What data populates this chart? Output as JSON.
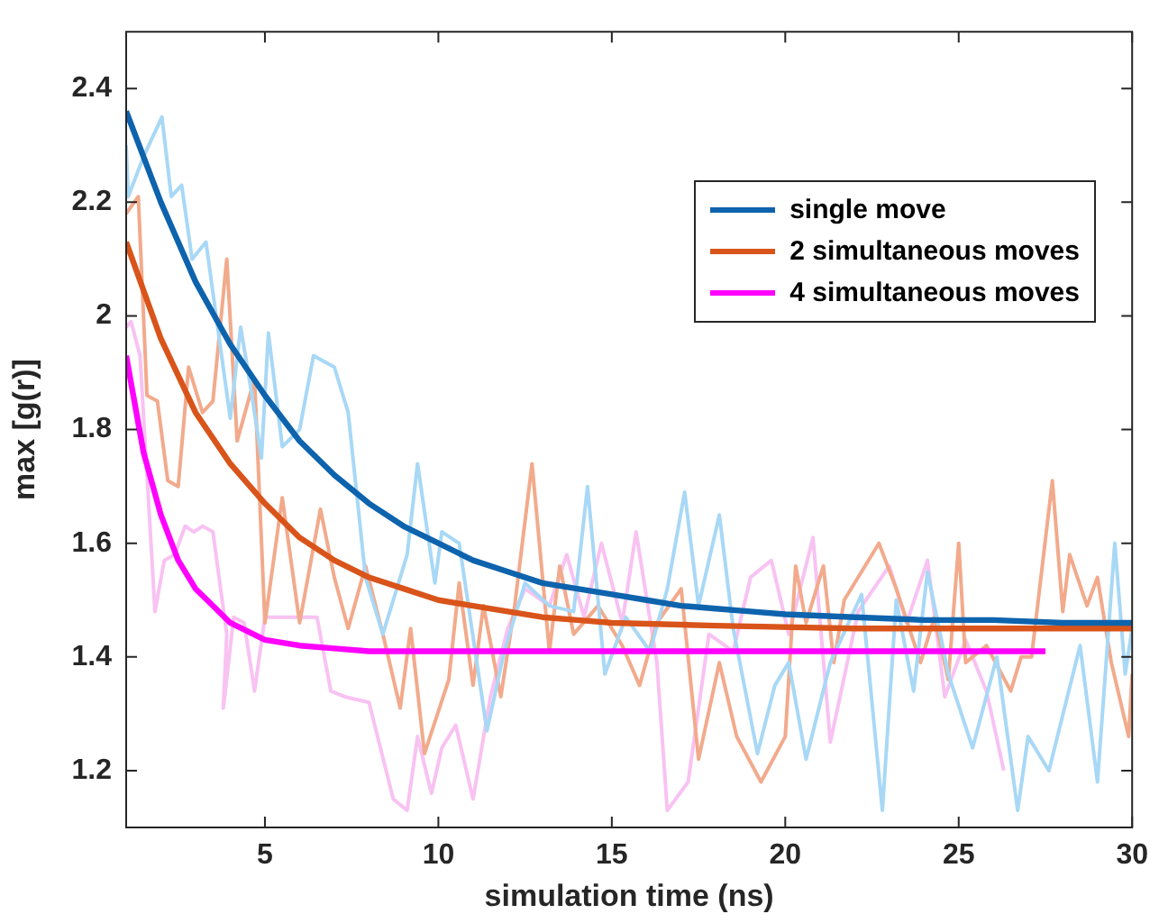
{
  "chart_data": {
    "type": "line",
    "xlabel": "simulation time (ns)",
    "ylabel": "max [g(r)]",
    "xlim": [
      1,
      30
    ],
    "ylim": [
      1.1,
      2.5
    ],
    "xticks": [
      5,
      10,
      15,
      20,
      25,
      30
    ],
    "yticks": [
      1.2,
      1.4,
      1.6,
      1.8,
      2,
      2.2,
      2.4
    ],
    "grid": false,
    "legend": "top right",
    "marker": "none",
    "line_style": "solid",
    "series": [
      {
        "type": "line",
        "color": "#a8d8f6",
        "x": [
          1,
          1.06,
          1.5,
          2.03,
          2.3,
          2.6,
          2.9,
          3.3,
          4.0,
          4.3,
          4.6,
          4.9,
          5.1,
          5.5,
          6.0,
          6.4,
          7.0,
          7.4,
          7.9,
          8.4,
          9.1,
          9.4,
          9.9,
          10.1,
          10.6,
          11.4,
          11.9,
          12.5,
          13.2,
          13.9,
          14.3,
          14.8,
          15.4,
          16.1,
          16.6,
          17.1,
          17.5,
          18.1,
          18.5,
          19.2,
          19.7,
          20.1,
          20.6,
          21.3,
          22.2,
          22.8,
          23.2,
          23.7,
          24.1,
          24.7,
          25.4,
          26.1,
          26.7,
          27.0,
          27.6,
          28.5,
          29.0,
          29.5,
          29.8,
          30
        ],
        "values": [
          2.3,
          2.21,
          2.28,
          2.35,
          2.21,
          2.23,
          2.1,
          2.13,
          1.82,
          1.98,
          1.87,
          1.75,
          1.97,
          1.77,
          1.8,
          1.93,
          1.91,
          1.83,
          1.54,
          1.44,
          1.58,
          1.74,
          1.53,
          1.62,
          1.6,
          1.27,
          1.41,
          1.53,
          1.49,
          1.48,
          1.7,
          1.37,
          1.47,
          1.41,
          1.52,
          1.69,
          1.49,
          1.65,
          1.45,
          1.23,
          1.35,
          1.39,
          1.22,
          1.39,
          1.51,
          1.13,
          1.5,
          1.34,
          1.55,
          1.37,
          1.24,
          1.4,
          1.13,
          1.26,
          1.2,
          1.42,
          1.18,
          1.6,
          1.37,
          1.45
        ]
      },
      {
        "type": "line",
        "color": "#f2aa8c",
        "x": [
          1,
          1.35,
          1.6,
          1.9,
          2.2,
          2.5,
          2.8,
          3.2,
          3.5,
          3.9,
          4.2,
          4.7,
          5.0,
          5.5,
          6.0,
          6.6,
          7.0,
          7.4,
          7.9,
          8.4,
          8.9,
          9.2,
          9.6,
          10.3,
          10.6,
          11.0,
          11.3,
          11.8,
          12.2,
          12.7,
          13.2,
          13.5,
          13.9,
          14.6,
          15.3,
          15.8,
          16.3,
          17.0,
          17.5,
          18.1,
          18.6,
          19.3,
          20.0,
          20.3,
          20.6,
          21.1,
          21.4,
          21.7,
          22.7,
          23.2,
          23.9,
          24.3,
          24.7,
          25.0,
          25.2,
          25.8,
          26.5,
          26.8,
          27.1,
          27.7,
          28.0,
          28.2,
          28.7,
          29.0,
          29.4,
          29.9,
          30
        ],
        "values": [
          2.18,
          2.21,
          1.86,
          1.85,
          1.71,
          1.7,
          1.91,
          1.83,
          1.85,
          2.1,
          1.78,
          1.89,
          1.46,
          1.68,
          1.46,
          1.66,
          1.54,
          1.45,
          1.56,
          1.44,
          1.31,
          1.45,
          1.23,
          1.36,
          1.53,
          1.35,
          1.49,
          1.33,
          1.49,
          1.74,
          1.41,
          1.56,
          1.44,
          1.49,
          1.42,
          1.35,
          1.46,
          1.52,
          1.22,
          1.39,
          1.26,
          1.18,
          1.26,
          1.56,
          1.46,
          1.56,
          1.39,
          1.5,
          1.6,
          1.52,
          1.39,
          1.47,
          1.36,
          1.6,
          1.39,
          1.42,
          1.34,
          1.4,
          1.4,
          1.71,
          1.48,
          1.58,
          1.49,
          1.54,
          1.39,
          1.26,
          1.37
        ]
      },
      {
        "type": "line",
        "color": "#f8c2f2",
        "x": [
          1,
          1.14,
          1.4,
          1.83,
          2.1,
          2.4,
          2.7,
          2.95,
          3.2,
          3.5,
          3.9,
          3.8,
          4.1,
          4.4,
          4.7,
          5.0,
          5.5,
          6.0,
          6.5,
          6.9,
          7.3,
          8.0,
          8.7,
          9.1,
          9.4,
          9.8,
          10.1,
          10.5,
          11.0,
          11.5,
          12.0,
          12.5,
          13.2,
          13.7,
          14.2,
          14.7,
          15.3,
          15.7,
          16.3,
          16.6,
          17.2,
          17.8,
          18.5,
          19.0,
          19.6,
          20.1,
          20.8,
          21.3,
          22.1,
          23.0,
          23.5,
          24.1,
          24.6,
          25.2,
          25.8,
          26.3
        ],
        "values": [
          1.98,
          1.99,
          1.93,
          1.48,
          1.57,
          1.58,
          1.63,
          1.62,
          1.63,
          1.62,
          1.44,
          1.31,
          1.47,
          1.46,
          1.34,
          1.47,
          1.47,
          1.47,
          1.47,
          1.34,
          1.33,
          1.32,
          1.15,
          1.13,
          1.26,
          1.16,
          1.24,
          1.28,
          1.15,
          1.33,
          1.45,
          1.52,
          1.49,
          1.58,
          1.47,
          1.6,
          1.46,
          1.62,
          1.39,
          1.13,
          1.18,
          1.44,
          1.41,
          1.54,
          1.57,
          1.44,
          1.61,
          1.25,
          1.48,
          1.56,
          1.46,
          1.57,
          1.33,
          1.43,
          1.34,
          1.2
        ]
      },
      {
        "type": "line",
        "name": "single move",
        "color": "#0e63ad",
        "x": [
          1,
          2,
          3,
          4,
          5,
          6,
          7,
          8,
          9,
          10,
          11,
          12,
          13,
          14,
          15,
          16,
          17,
          18,
          19,
          20,
          22,
          24,
          26,
          28,
          30
        ],
        "values": [
          2.36,
          2.2,
          2.06,
          1.95,
          1.86,
          1.78,
          1.72,
          1.67,
          1.63,
          1.6,
          1.57,
          1.55,
          1.53,
          1.52,
          1.51,
          1.5,
          1.49,
          1.485,
          1.48,
          1.475,
          1.47,
          1.465,
          1.465,
          1.46,
          1.46
        ]
      },
      {
        "type": "line",
        "name": "2 simultaneous moves",
        "color": "#d9541a",
        "x": [
          1,
          2,
          3,
          4,
          5,
          6,
          7,
          8,
          9,
          10,
          11,
          12,
          13,
          14,
          15,
          18,
          22,
          26,
          30
        ],
        "values": [
          2.13,
          1.96,
          1.83,
          1.74,
          1.67,
          1.61,
          1.57,
          1.54,
          1.52,
          1.5,
          1.49,
          1.48,
          1.47,
          1.465,
          1.46,
          1.455,
          1.45,
          1.45,
          1.45
        ]
      },
      {
        "type": "line",
        "name": "4 simultaneous moves",
        "color": "#ff00ff",
        "x": [
          1,
          1.5,
          2,
          2.5,
          3,
          3.5,
          4,
          5,
          6,
          7,
          8,
          10,
          15,
          20,
          25,
          27.5
        ],
        "values": [
          1.93,
          1.76,
          1.65,
          1.57,
          1.52,
          1.49,
          1.46,
          1.43,
          1.42,
          1.415,
          1.41,
          1.41,
          1.41,
          1.41,
          1.41,
          1.41
        ]
      }
    ]
  }
}
